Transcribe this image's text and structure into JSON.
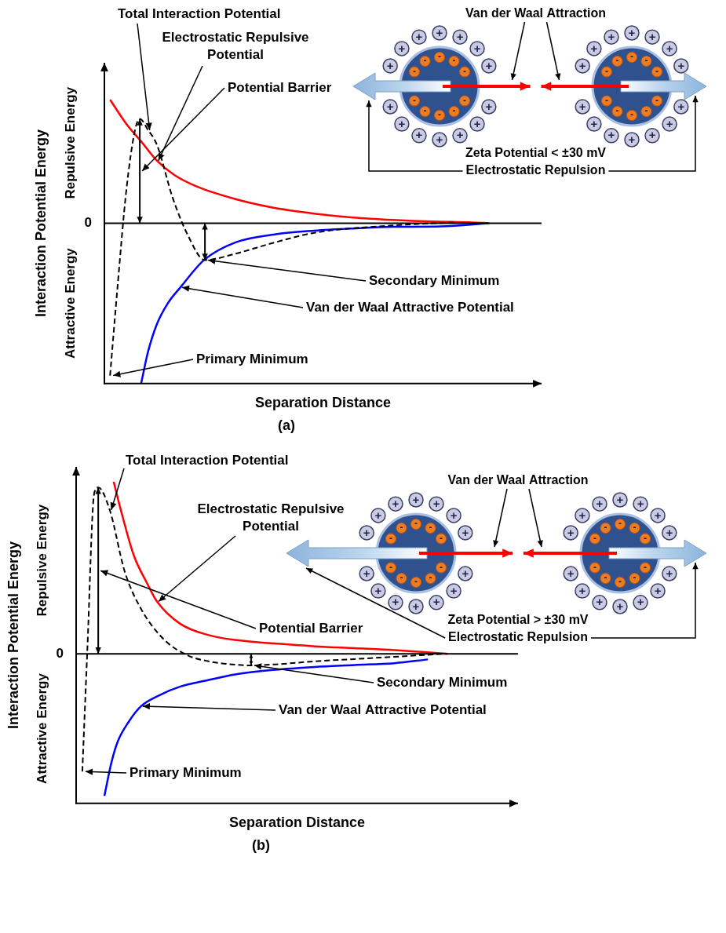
{
  "chart_data": [
    {
      "type": "line",
      "title": "(a)",
      "x_label": "Separation Distance",
      "y_label": "Interaction Potential Energy",
      "y_regions": [
        "Repulsive Energy",
        "Attractive Energy"
      ],
      "xlim": [
        0,
        10
      ],
      "xticks": [],
      "ylim": [
        -10,
        10
      ],
      "yticks": [
        0
      ],
      "grid": false,
      "tick_labels": "y",
      "series": [
        {
          "name": "Total Interaction Potential",
          "color": "#000000",
          "line_style": "dashed",
          "x": [
            0.13,
            0.3,
            0.5,
            0.7,
            0.81,
            1.0,
            1.2,
            1.56,
            1.9,
            2.3,
            3.0,
            3.9,
            4.8,
            6.6,
            8.0
          ],
          "values": [
            -9.5,
            -4,
            2,
            5.8,
            6.5,
            5.8,
            4.9,
            1.6,
            -0.7,
            -2.3,
            -1.9,
            -1.2,
            -0.6,
            -0.14,
            0.05
          ]
        },
        {
          "name": "Electrostatic Repulsive Potential",
          "color": "#ff0000",
          "line_style": "solid",
          "x": [
            0.13,
            0.5,
            0.84,
            1.2,
            1.6,
            2.1,
            3.0,
            3.8,
            4.8,
            5.7,
            6.6,
            7.5,
            8.4,
            8.8
          ],
          "values": [
            7.7,
            6.2,
            5.1,
            3.9,
            3.0,
            2.3,
            1.5,
            1.0,
            0.6,
            0.35,
            0.2,
            0.1,
            0.05,
            0
          ]
        },
        {
          "name": "Van der Waal Attractive Potential",
          "color": "#0000ff",
          "line_style": "solid",
          "x": [
            0.84,
            1.0,
            1.2,
            1.45,
            1.74,
            2.28,
            3.0,
            3.9,
            4.8,
            5.7,
            6.6,
            7.7,
            8.8
          ],
          "values": [
            -10,
            -8,
            -6.3,
            -5,
            -4,
            -2.3,
            -1.2,
            -0.7,
            -0.47,
            -0.33,
            -0.23,
            -0.2,
            0
          ]
        }
      ],
      "annotations": [
        "Potential Barrier",
        "Secondary Minimum",
        "Primary Minimum"
      ],
      "inset_labels": [
        "Van der Waal Attraction",
        "Zeta Potential < ±30 mV",
        "Electrostatic Repulsion"
      ],
      "inset_charges": [
        "+",
        "-"
      ]
    },
    {
      "type": "line",
      "title": "(b)",
      "x_label": "Separation Distance",
      "y_label": "Interaction Potential Energy",
      "y_regions": [
        "Repulsive Energy",
        "Attractive Energy"
      ],
      "xlim": [
        0,
        10
      ],
      "xticks": [],
      "ylim": [
        -8,
        10
      ],
      "yticks": [
        0
      ],
      "grid": false,
      "tick_labels": "y",
      "series": [
        {
          "name": "Total Interaction Potential",
          "color": "#000000",
          "line_style": "dashed",
          "x": [
            0.14,
            0.25,
            0.41,
            0.5,
            0.76,
            1.1,
            1.47,
            2.0,
            2.54,
            3.0,
            3.6,
            3.96,
            4.6,
            5.4,
            6.3,
            7.2,
            8.3
          ],
          "values": [
            -6.3,
            0,
            8.6,
            8.9,
            7.7,
            4.4,
            2.4,
            0.74,
            -0.1,
            -0.4,
            -0.58,
            -0.62,
            -0.55,
            -0.4,
            -0.28,
            -0.16,
            0
          ]
        },
        {
          "name": "Electrostatic Repulsive Potential",
          "color": "#ff0000",
          "line_style": "solid",
          "x": [
            0.85,
            1.0,
            1.3,
            1.6,
            1.83,
            2.36,
            3.0,
            3.6,
            4.5,
            5.4,
            6.3,
            7.2,
            8.4
          ],
          "values": [
            9.2,
            7.8,
            5.3,
            3.8,
            2.8,
            1.6,
            1.0,
            0.74,
            0.55,
            0.4,
            0.3,
            0.2,
            0
          ]
        },
        {
          "name": "Van der Waal Attractive Potential",
          "color": "#0000ff",
          "line_style": "solid",
          "x": [
            0.64,
            0.8,
            0.94,
            1.2,
            1.47,
            1.9,
            2.36,
            3.0,
            3.6,
            4.5,
            5.4,
            6.3,
            7.2,
            7.96
          ],
          "values": [
            -7.6,
            -5.8,
            -4.7,
            -3.6,
            -2.8,
            -2.2,
            -1.75,
            -1.4,
            -1.1,
            -0.85,
            -0.7,
            -0.6,
            -0.5,
            -0.3
          ]
        }
      ],
      "annotations": [
        "Potential Barrier",
        "Secondary Minimum",
        "Primary Minimum"
      ],
      "inset_labels": [
        "Van der Waal Attraction",
        "Zeta Potential > ±30 mV",
        "Electrostatic Repulsion"
      ],
      "inset_charges": [
        "+",
        "-"
      ]
    }
  ]
}
